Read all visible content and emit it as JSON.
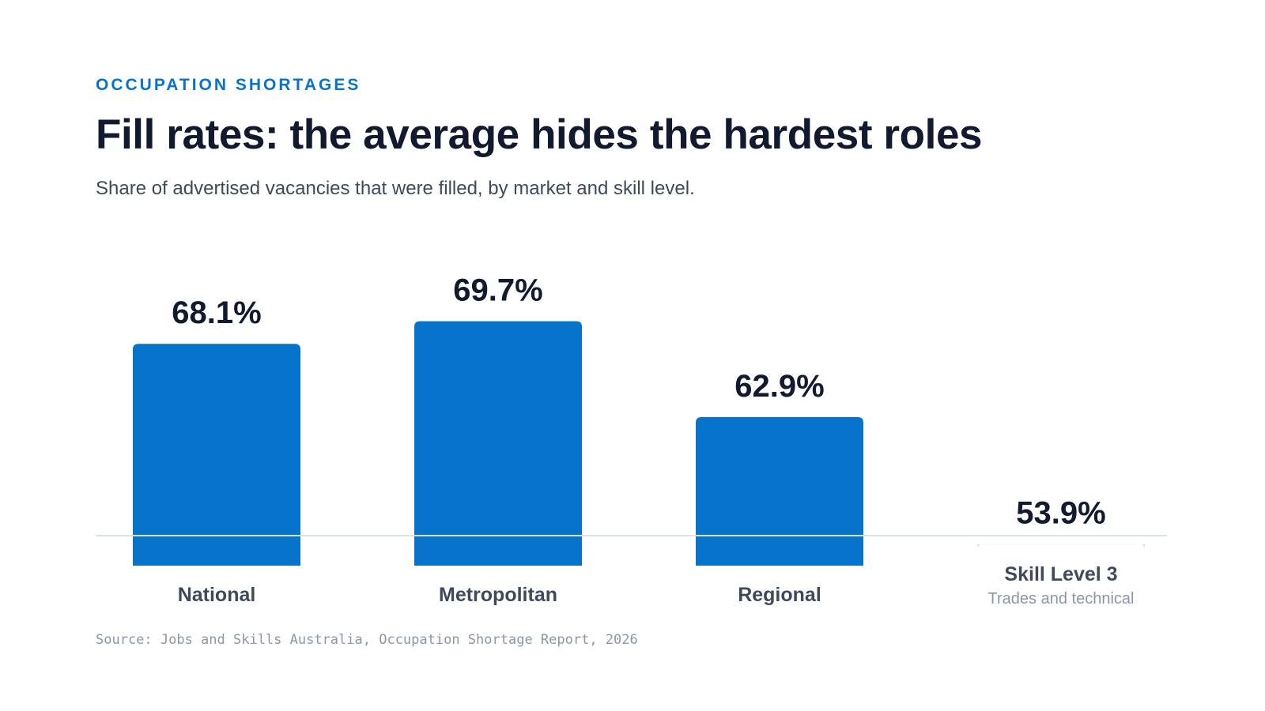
{
  "header": {
    "eyebrow": "OCCUPATION SHORTAGES",
    "title": "Fill rates: the average hides the hardest roles",
    "subtitle": "Share of advertised vacancies that were filled, by market and skill level."
  },
  "chart_data": {
    "type": "bar",
    "categories": [
      "National",
      "Metropolitan",
      "Regional",
      "Skill Level 3"
    ],
    "category_sublabels": [
      "",
      "",
      "",
      "Trades and technical"
    ],
    "values": [
      68.1,
      69.7,
      62.9,
      53.9
    ],
    "value_labels": [
      "68.1%",
      "69.7%",
      "62.9%",
      "53.9%"
    ],
    "highlighted": [
      true,
      true,
      true,
      false
    ],
    "colors": {
      "primary": "#0873cb",
      "muted": "#d2e2f2",
      "baseline": "#d9e1ea",
      "value_text": "#111a2e",
      "label_text": "#3e4a5c",
      "sublabel_text": "#8a97aa"
    },
    "ylim": [
      0,
      100
    ],
    "grid": false,
    "legend": "none"
  },
  "footer": {
    "source": "Source: Jobs and Skills Australia, Occupation Shortage Report, 2026"
  }
}
